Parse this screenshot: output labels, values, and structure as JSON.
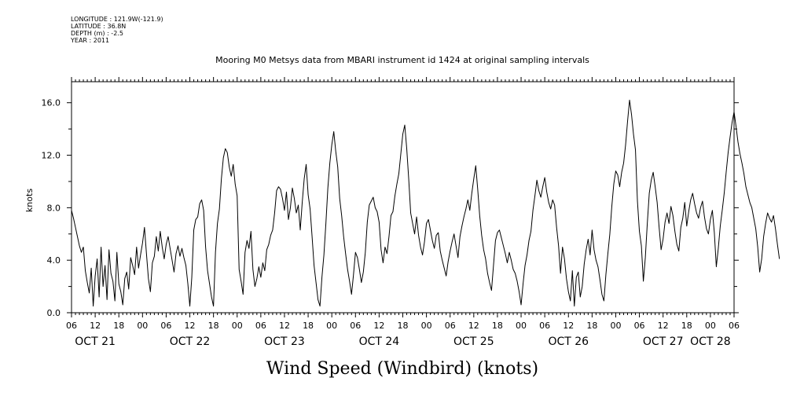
{
  "meta": {
    "longitude": "LONGITUDE : 121.9W(-121.9)",
    "latitude": "LATITUDE : 36.8N",
    "depth": "DEPTH (m) : -2.5",
    "year": "YEAR : 2011"
  },
  "chart_data": {
    "type": "line",
    "title": "Mooring M0 Metsys data from MBARI instrument id 1424 at original sampling intervals",
    "subtitle": "Wind Speed (Windbird) (knots)",
    "ylabel": "knots",
    "xlabel": "",
    "ylim": [
      0,
      17.6
    ],
    "yticks": [
      "0.0",
      "4.0",
      "8.0",
      "12.0",
      "16.0"
    ],
    "grid": false,
    "xlim_hours": [
      0,
      168
    ],
    "hour_tick_labels": [
      "06",
      "12",
      "18",
      "00",
      "06",
      "12",
      "18",
      "00",
      "06",
      "12",
      "18",
      "00",
      "06",
      "12",
      "18",
      "00",
      "06",
      "12",
      "18",
      "00",
      "06",
      "12",
      "18",
      "00",
      "06",
      "12",
      "18",
      "00",
      "06"
    ],
    "date_labels": [
      "OCT 21",
      "OCT 22",
      "OCT 23",
      "OCT 24",
      "OCT 25",
      "OCT 26",
      "OCT 27",
      "OCT 28"
    ],
    "series": [
      {
        "x_start": "2011-10-21 06:00",
        "x_step_hours": 0.5,
        "color": "#000000",
        "values": [
          7.8,
          7.2,
          6.5,
          5.8,
          5.1,
          4.6,
          5.0,
          3.2,
          2.3,
          1.5,
          3.4,
          0.5,
          2.8,
          4.1,
          1.2,
          5.0,
          2.0,
          3.6,
          1.0,
          4.8,
          3.0,
          2.4,
          0.9,
          4.6,
          2.2,
          1.6,
          0.6,
          2.6,
          3.1,
          1.8,
          4.2,
          3.6,
          2.9,
          5.0,
          3.4,
          4.4,
          5.3,
          6.5,
          4.5,
          2.6,
          1.6,
          3.8,
          4.3,
          5.8,
          4.7,
          6.2,
          5.0,
          4.1,
          5.2,
          5.8,
          4.9,
          4.0,
          3.1,
          4.5,
          5.1,
          4.3,
          4.9,
          4.2,
          3.6,
          2.2,
          0.5,
          2.7,
          6.3,
          7.1,
          7.3,
          8.3,
          8.6,
          7.8,
          5.0,
          3.2,
          2.2,
          1.2,
          0.5,
          4.6,
          6.8,
          7.9,
          10.2,
          11.8,
          12.5,
          12.2,
          11.1,
          10.4,
          11.3,
          9.8,
          8.9,
          3.3,
          2.4,
          1.4,
          4.6,
          5.5,
          4.9,
          6.2,
          3.3,
          2.0,
          2.6,
          3.5,
          2.7,
          3.8,
          3.2,
          4.8,
          5.2,
          5.9,
          6.3,
          7.6,
          9.3,
          9.6,
          9.4,
          8.7,
          7.8,
          9.2,
          7.1,
          8.0,
          9.5,
          8.7,
          7.6,
          8.2,
          6.3,
          8.4,
          10.2,
          11.3,
          9.0,
          7.9,
          5.8,
          3.6,
          2.3,
          1.0,
          0.5,
          2.7,
          4.4,
          6.8,
          9.5,
          11.4,
          12.8,
          13.8,
          12.3,
          11.1,
          8.7,
          7.4,
          5.8,
          4.5,
          3.3,
          2.4,
          1.4,
          2.9,
          4.6,
          4.2,
          3.3,
          2.3,
          3.1,
          4.6,
          6.9,
          8.2,
          8.5,
          8.8,
          8.0,
          7.7,
          6.9,
          4.8,
          3.8,
          5.0,
          4.5,
          5.8,
          7.4,
          7.7,
          8.9,
          9.8,
          10.6,
          12.1,
          13.6,
          14.3,
          12.5,
          10.2,
          7.6,
          6.8,
          6.0,
          7.3,
          5.9,
          5.0,
          4.4,
          5.4,
          6.8,
          7.1,
          6.3,
          5.5,
          4.9,
          5.9,
          6.1,
          4.7,
          4.0,
          3.4,
          2.8,
          3.9,
          4.7,
          5.4,
          6.0,
          5.1,
          4.2,
          5.8,
          6.6,
          7.3,
          7.9,
          8.6,
          7.8,
          9.1,
          10.2,
          11.2,
          9.4,
          7.4,
          5.9,
          4.8,
          4.1,
          3.0,
          2.3,
          1.7,
          3.6,
          5.5,
          6.1,
          6.3,
          5.7,
          5.1,
          4.5,
          3.8,
          4.6,
          4.0,
          3.3,
          3.0,
          2.4,
          1.6,
          0.6,
          2.2,
          3.6,
          4.4,
          5.5,
          6.2,
          7.8,
          8.9,
          10.1,
          9.3,
          8.8,
          9.6,
          10.3,
          9.2,
          8.4,
          7.9,
          8.6,
          8.2,
          6.5,
          5.1,
          3.0,
          5.0,
          4.1,
          2.6,
          1.6,
          0.9,
          3.2,
          0.5,
          2.7,
          3.1,
          1.2,
          2.0,
          3.7,
          4.8,
          5.6,
          4.4,
          6.3,
          4.8,
          4.0,
          3.5,
          2.5,
          1.4,
          0.9,
          2.9,
          4.5,
          6.0,
          8.1,
          9.8,
          10.8,
          10.5,
          9.6,
          10.7,
          11.4,
          12.8,
          14.6,
          16.2,
          15.1,
          13.6,
          12.4,
          8.5,
          6.2,
          5.1,
          2.4,
          4.2,
          6.8,
          9.1,
          10.1,
          10.7,
          9.6,
          8.4,
          6.5,
          4.8,
          5.6,
          6.9,
          7.6,
          6.8,
          8.1,
          7.4,
          6.2,
          5.2,
          4.7,
          6.5,
          7.2,
          8.4,
          6.6,
          7.7,
          8.6,
          9.1,
          8.3,
          7.6,
          7.2,
          8.0,
          8.5,
          7.3,
          6.4,
          6.0,
          7.1,
          7.8,
          6.1,
          3.5,
          4.9,
          6.6,
          7.8,
          9.1,
          10.7,
          12.2,
          13.4,
          14.5,
          15.3,
          14.2,
          13.0,
          12.1,
          11.4,
          10.6,
          9.6,
          9.0,
          8.4,
          8.0,
          7.2,
          6.4,
          5.0,
          3.1,
          4.1,
          5.8,
          6.8,
          7.6,
          7.2,
          6.9,
          7.4,
          6.4,
          5.2,
          4.1
        ]
      }
    ]
  }
}
